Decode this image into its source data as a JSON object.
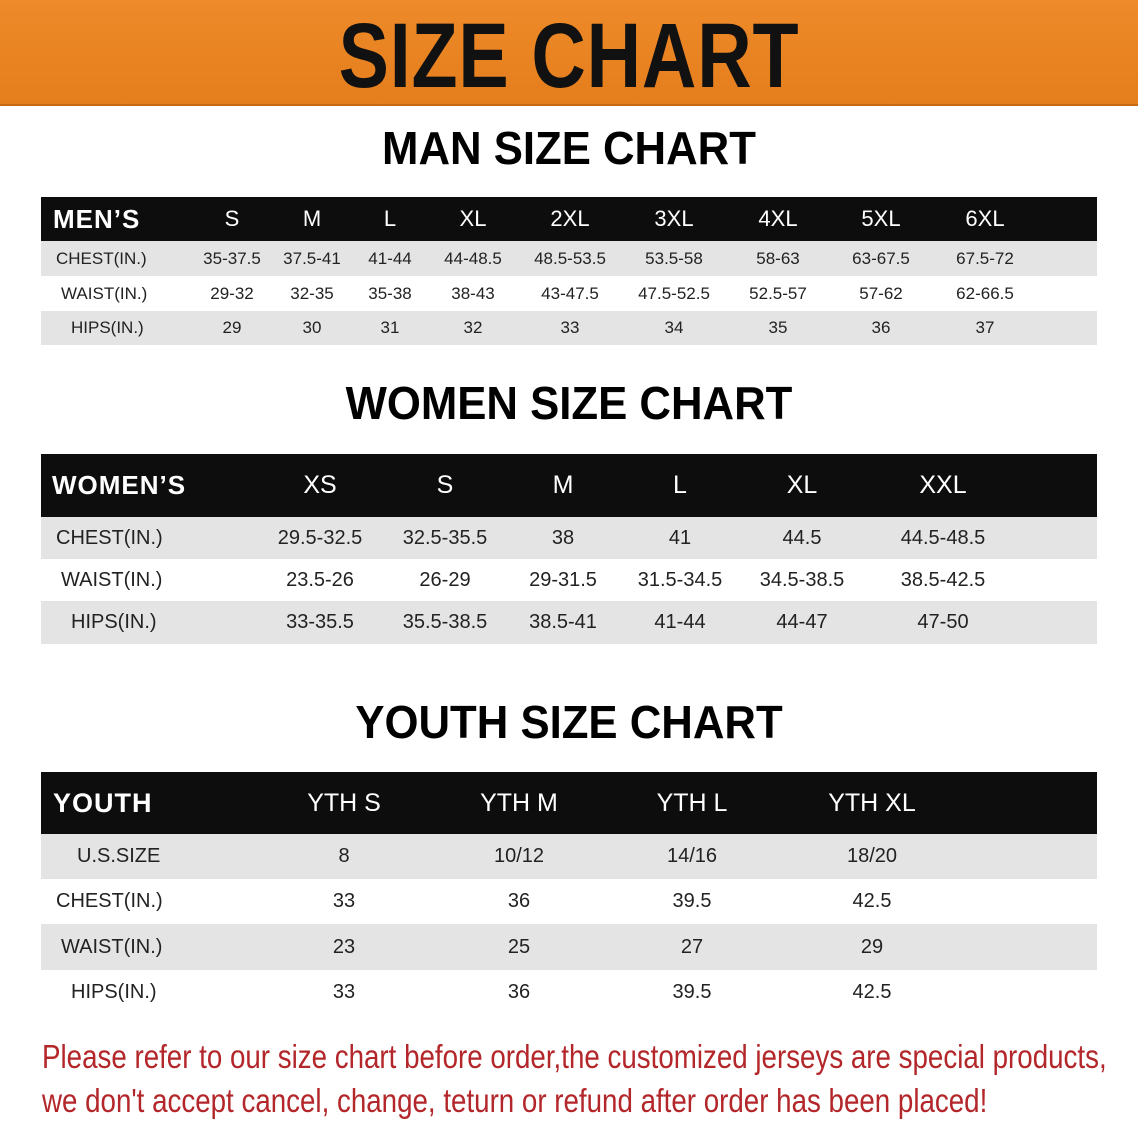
{
  "banner": {
    "title": "SIZE CHART",
    "color": "#e98425"
  },
  "men": {
    "title": "MAN SIZE CHART",
    "header": [
      "MEN’S",
      "S",
      "M",
      "L",
      "XL",
      "2XL",
      "3XL",
      "4XL",
      "5XL",
      "6XL"
    ],
    "rows": [
      [
        "CHEST(IN.)",
        "35-37.5",
        "37.5-41",
        "41-44",
        "44-48.5",
        "48.5-53.5",
        "53.5-58",
        "58-63",
        "63-67.5",
        "67.5-72"
      ],
      [
        "WAIST(IN.)",
        "29-32",
        "32-35",
        "35-38",
        "38-43",
        "43-47.5",
        "47.5-52.5",
        "52.5-57",
        "57-62",
        "62-66.5"
      ],
      [
        "HIPS(IN.)",
        "29",
        "30",
        "31",
        "32",
        "33",
        "34",
        "35",
        "36",
        "37"
      ]
    ]
  },
  "women": {
    "title": "WOMEN SIZE CHART",
    "header": [
      "WOMEN’S",
      "XS",
      "S",
      "M",
      "L",
      "XL",
      "XXL"
    ],
    "rows": [
      [
        "CHEST(IN.)",
        "29.5-32.5",
        "32.5-35.5",
        "38",
        "41",
        "44.5",
        "44.5-48.5"
      ],
      [
        "WAIST(IN.)",
        "23.5-26",
        "26-29",
        "29-31.5",
        "31.5-34.5",
        "34.5-38.5",
        "38.5-42.5"
      ],
      [
        "HIPS(IN.)",
        "33-35.5",
        "35.5-38.5",
        "38.5-41",
        "41-44",
        "44-47",
        "47-50"
      ]
    ]
  },
  "youth": {
    "title": "YOUTH SIZE CHART",
    "header": [
      "YOUTH",
      "YTH S",
      "YTH M",
      "YTH L",
      "YTH XL"
    ],
    "rows": [
      [
        "U.S.SIZE",
        "8",
        "10/12",
        "14/16",
        "18/20"
      ],
      [
        "CHEST(IN.)",
        "33",
        "36",
        "39.5",
        "42.5"
      ],
      [
        "WAIST(IN.)",
        "23",
        "25",
        "27",
        "29"
      ],
      [
        "HIPS(IN.)",
        "33",
        "36",
        "39.5",
        "42.5"
      ]
    ]
  },
  "note": {
    "line1": "Please refer to our size chart before order,the customized jerseys are special products,",
    "line2": "we don't accept cancel, change, teturn or refund after order has been placed!",
    "color": "#b3262a"
  }
}
